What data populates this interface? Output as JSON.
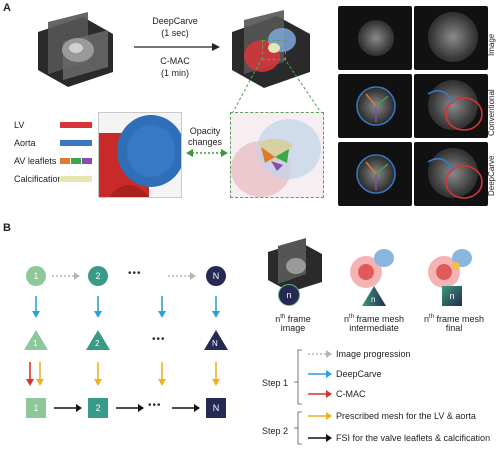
{
  "panel_a": {
    "label": "A",
    "deepcarve_label": "DeepCarve",
    "deepcarve_time": "(1 sec)",
    "cmac_label": "C-MAC",
    "cmac_time": "(1 min)",
    "legend": [
      {
        "label": "LV",
        "color": "#d9343a"
      },
      {
        "label": "Aorta",
        "color": "#3a78c2"
      },
      {
        "label": "AV leaflets",
        "colors": [
          "#e07a2a",
          "#3aa84a",
          "#8a4ab0"
        ]
      },
      {
        "label": "Calcification",
        "color": "#e6e6b0"
      }
    ],
    "opacity_label_1": "Opacity",
    "opacity_label_2": "changes",
    "row_labels": [
      "Image",
      "Conventional",
      "DeepCarve"
    ]
  },
  "panel_b": {
    "label": "B",
    "nodes": [
      "1",
      "2",
      "N"
    ],
    "node_n": "n",
    "frame_image_1": "n",
    "frame_image_2": "th",
    "frame_image_3": " frame",
    "frame_image_4": "image",
    "frame_inter_1": "n",
    "frame_inter_2": "th",
    "frame_inter_3": " frame mesh",
    "frame_inter_4": "intermediate",
    "frame_final_1": "n",
    "frame_final_2": "th",
    "frame_final_3": " frame mesh",
    "frame_final_4": "final",
    "step1": "Step 1",
    "step2": "Step 2",
    "legend": [
      {
        "label": "Image progression",
        "color": "#b5b5b5",
        "style": "dotted"
      },
      {
        "label": "DeepCarve",
        "color": "#2aa0dc",
        "style": "solid"
      },
      {
        "label": "C-MAC",
        "color": "#d8342c",
        "style": "solid"
      },
      {
        "label": "Prescribed mesh for the LV & aorta",
        "color": "#f0b020",
        "style": "solid"
      },
      {
        "label": "FSI for the valve leaflets & calcification",
        "color": "#111111",
        "style": "solid"
      }
    ]
  }
}
